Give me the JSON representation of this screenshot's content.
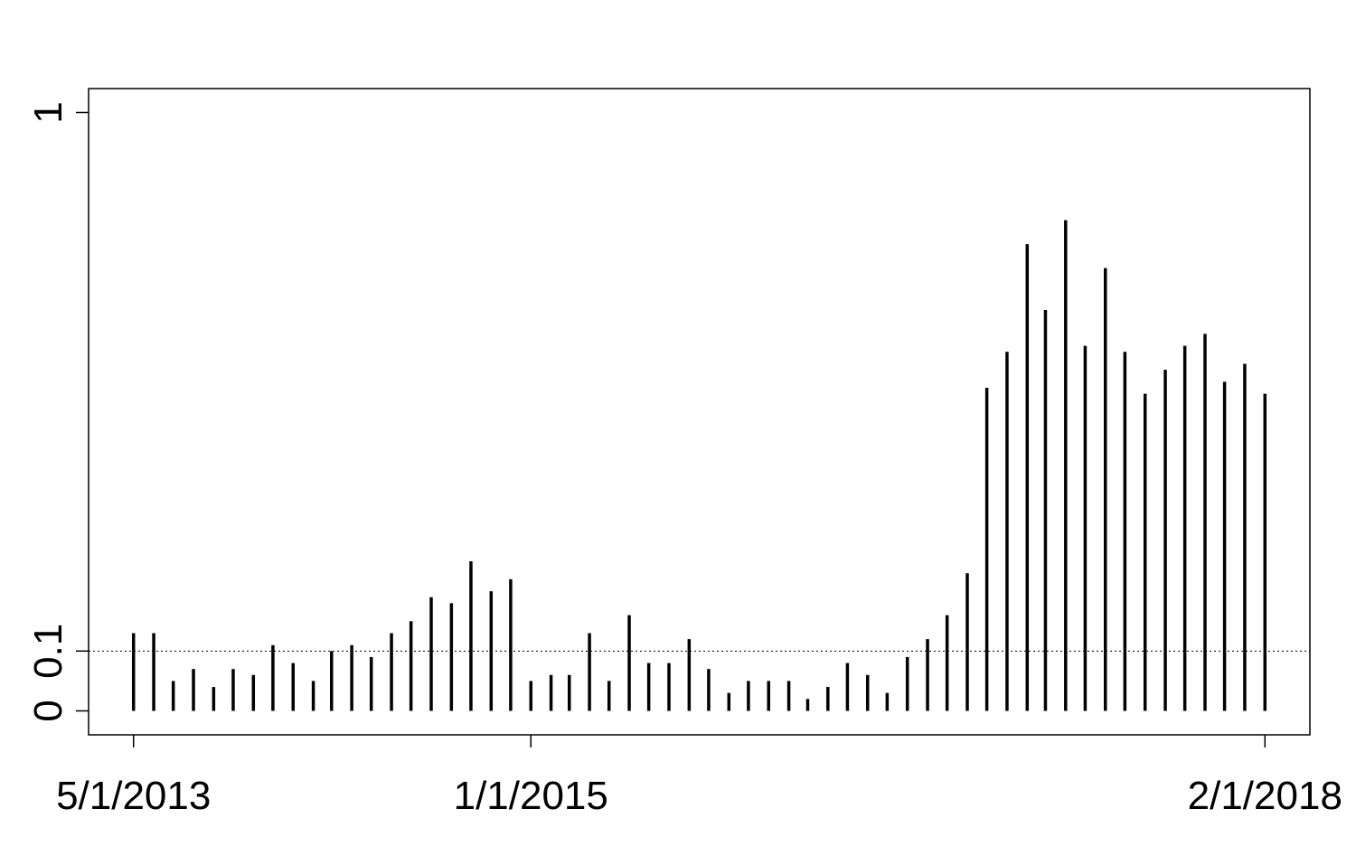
{
  "chart_data": {
    "type": "bar",
    "x": [
      "2013-05-01",
      "2013-06-01",
      "2013-07-01",
      "2013-08-01",
      "2013-09-01",
      "2013-10-01",
      "2013-11-01",
      "2013-12-01",
      "2014-01-01",
      "2014-02-01",
      "2014-03-01",
      "2014-04-01",
      "2014-05-01",
      "2014-06-01",
      "2014-07-01",
      "2014-08-01",
      "2014-09-01",
      "2014-10-01",
      "2014-11-01",
      "2014-12-01",
      "2015-01-01",
      "2015-02-01",
      "2015-03-01",
      "2015-04-01",
      "2015-05-01",
      "2015-06-01",
      "2015-07-01",
      "2015-08-01",
      "2015-09-01",
      "2015-10-01",
      "2015-11-01",
      "2015-12-01",
      "2016-01-01",
      "2016-02-01",
      "2016-03-01",
      "2016-04-01",
      "2016-05-01",
      "2016-06-01",
      "2016-07-01",
      "2016-08-01",
      "2016-09-01",
      "2016-10-01",
      "2016-11-01",
      "2016-12-01",
      "2017-01-01",
      "2017-02-01",
      "2017-03-01",
      "2017-04-01",
      "2017-05-01",
      "2017-06-01",
      "2017-07-01",
      "2017-08-01",
      "2017-09-01",
      "2017-10-01",
      "2017-11-01",
      "2017-12-01",
      "2018-01-01",
      "2018-02-01"
    ],
    "values": [
      0.13,
      0.13,
      0.05,
      0.07,
      0.04,
      0.07,
      0.06,
      0.11,
      0.08,
      0.05,
      0.1,
      0.11,
      0.09,
      0.13,
      0.15,
      0.19,
      0.18,
      0.25,
      0.2,
      0.22,
      0.05,
      0.06,
      0.06,
      0.13,
      0.05,
      0.16,
      0.08,
      0.08,
      0.12,
      0.07,
      0.03,
      0.05,
      0.05,
      0.05,
      0.02,
      0.04,
      0.08,
      0.06,
      0.03,
      0.09,
      0.12,
      0.16,
      0.23,
      0.54,
      0.6,
      0.78,
      0.67,
      0.82,
      0.61,
      0.74,
      0.6,
      0.53,
      0.57,
      0.61,
      0.63,
      0.55,
      0.58,
      0.53
    ],
    "color": "#000000",
    "xlim": [
      "2013-02-21",
      "2018-04-11"
    ],
    "xticks": [
      {
        "value": "2013-05-01",
        "label": "5/1/2013"
      },
      {
        "value": "2015-01-01",
        "label": "1/1/2015"
      },
      {
        "value": "2018-02-01",
        "label": "2/1/2018"
      }
    ],
    "ylim": [
      -0.04,
      1.04
    ],
    "yticks": [
      0,
      0.1,
      1
    ],
    "reference_line": 0.1
  }
}
